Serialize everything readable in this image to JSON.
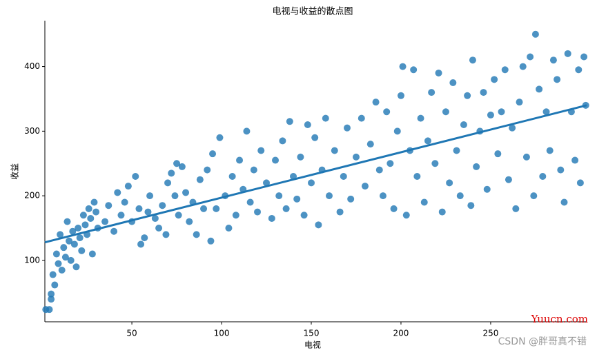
{
  "chart_data": {
    "type": "scatter",
    "title": "电视与收益的散点图",
    "x_label": "电视",
    "y_label": "收益",
    "xlim": [
      1.5,
      303.5
    ],
    "ylim": [
      5,
      471
    ],
    "xticks": [
      50,
      100,
      150,
      200,
      250
    ],
    "yticks": [
      100,
      200,
      300,
      400
    ],
    "color": "#1f77b4",
    "x": [
      2,
      4,
      5,
      5,
      6,
      7,
      8,
      9,
      10,
      11,
      12,
      13,
      14,
      15,
      16,
      17,
      18,
      19,
      20,
      21,
      22,
      23,
      24,
      25,
      26,
      27,
      28,
      29,
      30,
      31,
      35,
      37,
      40,
      42,
      44,
      46,
      48,
      50,
      52,
      54,
      55,
      57,
      59,
      60,
      63,
      65,
      67,
      69,
      70,
      72,
      74,
      75,
      76,
      78,
      80,
      82,
      84,
      86,
      88,
      90,
      92,
      94,
      95,
      97,
      99,
      102,
      104,
      106,
      108,
      110,
      112,
      114,
      116,
      118,
      120,
      122,
      125,
      128,
      130,
      132,
      134,
      136,
      138,
      140,
      142,
      144,
      146,
      148,
      150,
      152,
      154,
      156,
      158,
      160,
      163,
      166,
      168,
      170,
      172,
      175,
      178,
      180,
      183,
      186,
      188,
      190,
      192,
      194,
      196,
      198,
      200,
      201,
      203,
      205,
      207,
      209,
      211,
      213,
      215,
      217,
      219,
      221,
      223,
      225,
      227,
      229,
      231,
      233,
      235,
      237,
      239,
      240,
      242,
      244,
      246,
      248,
      250,
      252,
      254,
      256,
      258,
      260,
      262,
      264,
      266,
      268,
      270,
      272,
      274,
      275,
      277,
      279,
      281,
      283,
      285,
      287,
      289,
      291,
      293,
      295,
      297,
      299,
      300,
      302,
      303
    ],
    "y": [
      24,
      24,
      48,
      40,
      78,
      62,
      110,
      95,
      140,
      85,
      120,
      105,
      160,
      130,
      100,
      145,
      125,
      90,
      150,
      135,
      115,
      170,
      155,
      140,
      180,
      165,
      110,
      190,
      175,
      150,
      160,
      185,
      145,
      205,
      170,
      190,
      215,
      160,
      230,
      180,
      125,
      135,
      175,
      200,
      165,
      150,
      185,
      140,
      220,
      235,
      200,
      250,
      170,
      245,
      205,
      160,
      190,
      140,
      225,
      180,
      240,
      130,
      265,
      180,
      290,
      200,
      150,
      230,
      170,
      255,
      210,
      300,
      190,
      240,
      175,
      270,
      220,
      165,
      255,
      200,
      285,
      180,
      315,
      230,
      195,
      260,
      170,
      310,
      220,
      290,
      155,
      240,
      320,
      200,
      270,
      175,
      230,
      305,
      195,
      260,
      320,
      215,
      280,
      345,
      240,
      200,
      330,
      250,
      180,
      300,
      355,
      400,
      170,
      270,
      395,
      230,
      320,
      190,
      285,
      360,
      250,
      390,
      175,
      330,
      220,
      375,
      270,
      200,
      310,
      355,
      185,
      410,
      245,
      300,
      360,
      210,
      325,
      380,
      265,
      330,
      395,
      225,
      305,
      180,
      345,
      400,
      260,
      415,
      200,
      450,
      365,
      230,
      330,
      270,
      410,
      380,
      240,
      190,
      420,
      330,
      255,
      395,
      220,
      415,
      340
    ],
    "regression": {
      "x": [
        1.5,
        303.5
      ],
      "y": [
        128,
        340
      ]
    },
    "annotations": [
      "Yuucn.com",
      "CSDN @胖哥真不错"
    ]
  }
}
